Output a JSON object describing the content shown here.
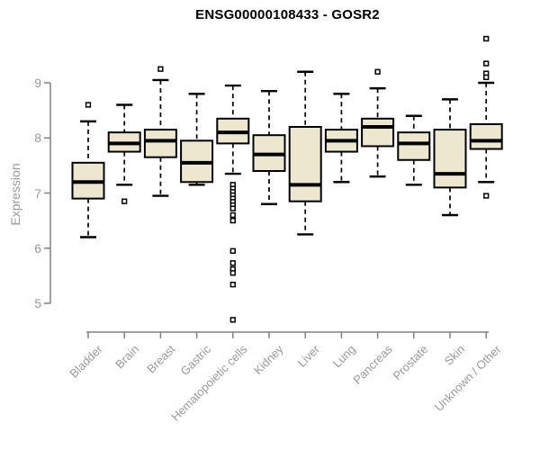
{
  "page": {
    "background": "#FFFFFF"
  },
  "chart_data": {
    "type": "boxplot",
    "title": "ENSG00000108433 - GOSR2",
    "xlabel": "",
    "ylabel": "Expression",
    "yticks": [
      5,
      6,
      7,
      8,
      9
    ],
    "ylim": [
      4.5,
      9.9
    ],
    "grid": false,
    "legend": "none",
    "categories": [
      "Bladder",
      "Brain",
      "Breast",
      "Gastric",
      "Hematopoietic cells",
      "Kidney",
      "Liver",
      "Lung",
      "Pancreas",
      "Prostate",
      "Skin",
      "Unknown / Other"
    ],
    "boxes": [
      {
        "category": "Bladder",
        "whisker_low": 6.2,
        "q1": 6.9,
        "median": 7.2,
        "q3": 7.55,
        "whisker_high": 8.3,
        "outliers": [
          8.6
        ]
      },
      {
        "category": "Brain",
        "whisker_low": 7.15,
        "q1": 7.75,
        "median": 7.9,
        "q3": 8.1,
        "whisker_high": 8.6,
        "outliers": [
          6.85
        ]
      },
      {
        "category": "Breast",
        "whisker_low": 6.95,
        "q1": 7.65,
        "median": 7.95,
        "q3": 8.15,
        "whisker_high": 9.05,
        "outliers": [
          9.25
        ]
      },
      {
        "category": "Gastric",
        "whisker_low": 7.15,
        "q1": 7.2,
        "median": 7.55,
        "q3": 7.95,
        "whisker_high": 8.8,
        "outliers": []
      },
      {
        "category": "Hematopoietic cells",
        "whisker_low": 7.35,
        "q1": 7.9,
        "median": 8.1,
        "q3": 8.35,
        "whisker_high": 8.95,
        "outliers": [
          7.15,
          7.08,
          7.02,
          6.96,
          6.9,
          6.84,
          6.78,
          6.72,
          6.6,
          6.5,
          5.95,
          5.73,
          5.62,
          5.55,
          5.34,
          4.7
        ]
      },
      {
        "category": "Kidney",
        "whisker_low": 6.8,
        "q1": 7.4,
        "median": 7.7,
        "q3": 8.05,
        "whisker_high": 8.85,
        "outliers": []
      },
      {
        "category": "Liver",
        "whisker_low": 6.25,
        "q1": 6.85,
        "median": 7.15,
        "q3": 8.2,
        "whisker_high": 9.2,
        "outliers": []
      },
      {
        "category": "Lung",
        "whisker_low": 7.2,
        "q1": 7.75,
        "median": 7.95,
        "q3": 8.15,
        "whisker_high": 8.8,
        "outliers": []
      },
      {
        "category": "Pancreas",
        "whisker_low": 7.3,
        "q1": 7.85,
        "median": 8.2,
        "q3": 8.35,
        "whisker_high": 8.9,
        "outliers": [
          9.2
        ]
      },
      {
        "category": "Prostate",
        "whisker_low": 7.15,
        "q1": 7.6,
        "median": 7.9,
        "q3": 8.1,
        "whisker_high": 8.4,
        "outliers": []
      },
      {
        "category": "Skin",
        "whisker_low": 6.6,
        "q1": 7.1,
        "median": 7.35,
        "q3": 8.15,
        "whisker_high": 8.7,
        "outliers": []
      },
      {
        "category": "Unknown / Other",
        "whisker_low": 7.2,
        "q1": 7.8,
        "median": 7.95,
        "q3": 8.25,
        "whisker_high": 9.0,
        "outliers": [
          9.8,
          9.35,
          9.17,
          9.1,
          6.95
        ]
      }
    ],
    "colors": {
      "box_fill": "#EDE7CF",
      "box_border": "#000000",
      "median": "#000000",
      "whisker": "#000000",
      "outlier": "#000000",
      "axis": "#808080",
      "tick_label": "#999999",
      "title": "#000000"
    }
  }
}
